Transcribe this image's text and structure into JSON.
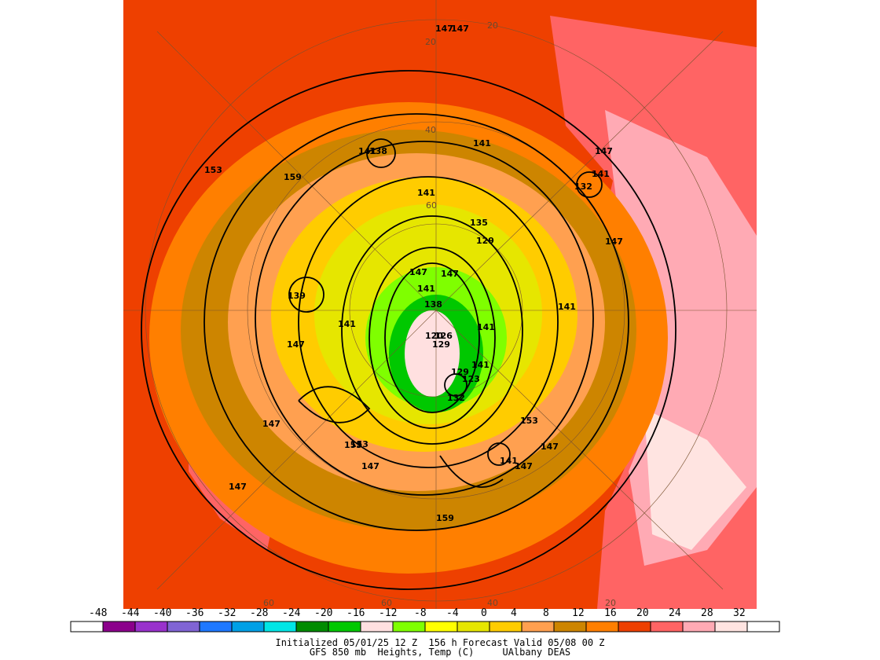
{
  "map": {
    "title_line1": "Initialized 05/01/25 12 Z  156 h Forecast Valid 05/08 00 Z",
    "title_line2": "GFS 850 mb  Heights, Temp (C)     UAlbany DEAS",
    "height_labels": [
      "147",
      "147",
      "141",
      "141",
      "141",
      "147",
      "138",
      "132",
      "159",
      "153",
      "141",
      "147",
      "147",
      "147",
      "153",
      "135",
      "129",
      "147",
      "141",
      "141",
      "141",
      "141",
      "139",
      "159",
      "147",
      "147",
      "153",
      "141",
      "141",
      "153",
      "147",
      "126",
      "129",
      "129",
      "132",
      "138",
      "120",
      "123",
      "147",
      "147"
    ],
    "lat_labels": [
      "20",
      "40",
      "60",
      "20",
      "60",
      "40",
      "20",
      "60"
    ]
  },
  "colorbar": {
    "tick_labels": [
      "-48",
      "-44",
      "-40",
      "-36",
      "-32",
      "-28",
      "-24",
      "-20",
      "-16",
      "-12",
      "-8",
      "-4",
      "0",
      "4",
      "8",
      "12",
      "16",
      "20",
      "24",
      "28",
      "32"
    ],
    "colors": [
      "#ffffff",
      "#8b008b",
      "#9932cc",
      "#8064d4",
      "#1e78ff",
      "#00a0e6",
      "#00e6e6",
      "#008b00",
      "#00c800",
      "#ffe0e0",
      "#7fff00",
      "#ffff00",
      "#e6e600",
      "#ffcc00",
      "#ffa050",
      "#cd8500",
      "#ff7f00",
      "#ee4000",
      "#ff6464",
      "#ffaab4",
      "#ffe4e1",
      "#ffffff"
    ]
  }
}
